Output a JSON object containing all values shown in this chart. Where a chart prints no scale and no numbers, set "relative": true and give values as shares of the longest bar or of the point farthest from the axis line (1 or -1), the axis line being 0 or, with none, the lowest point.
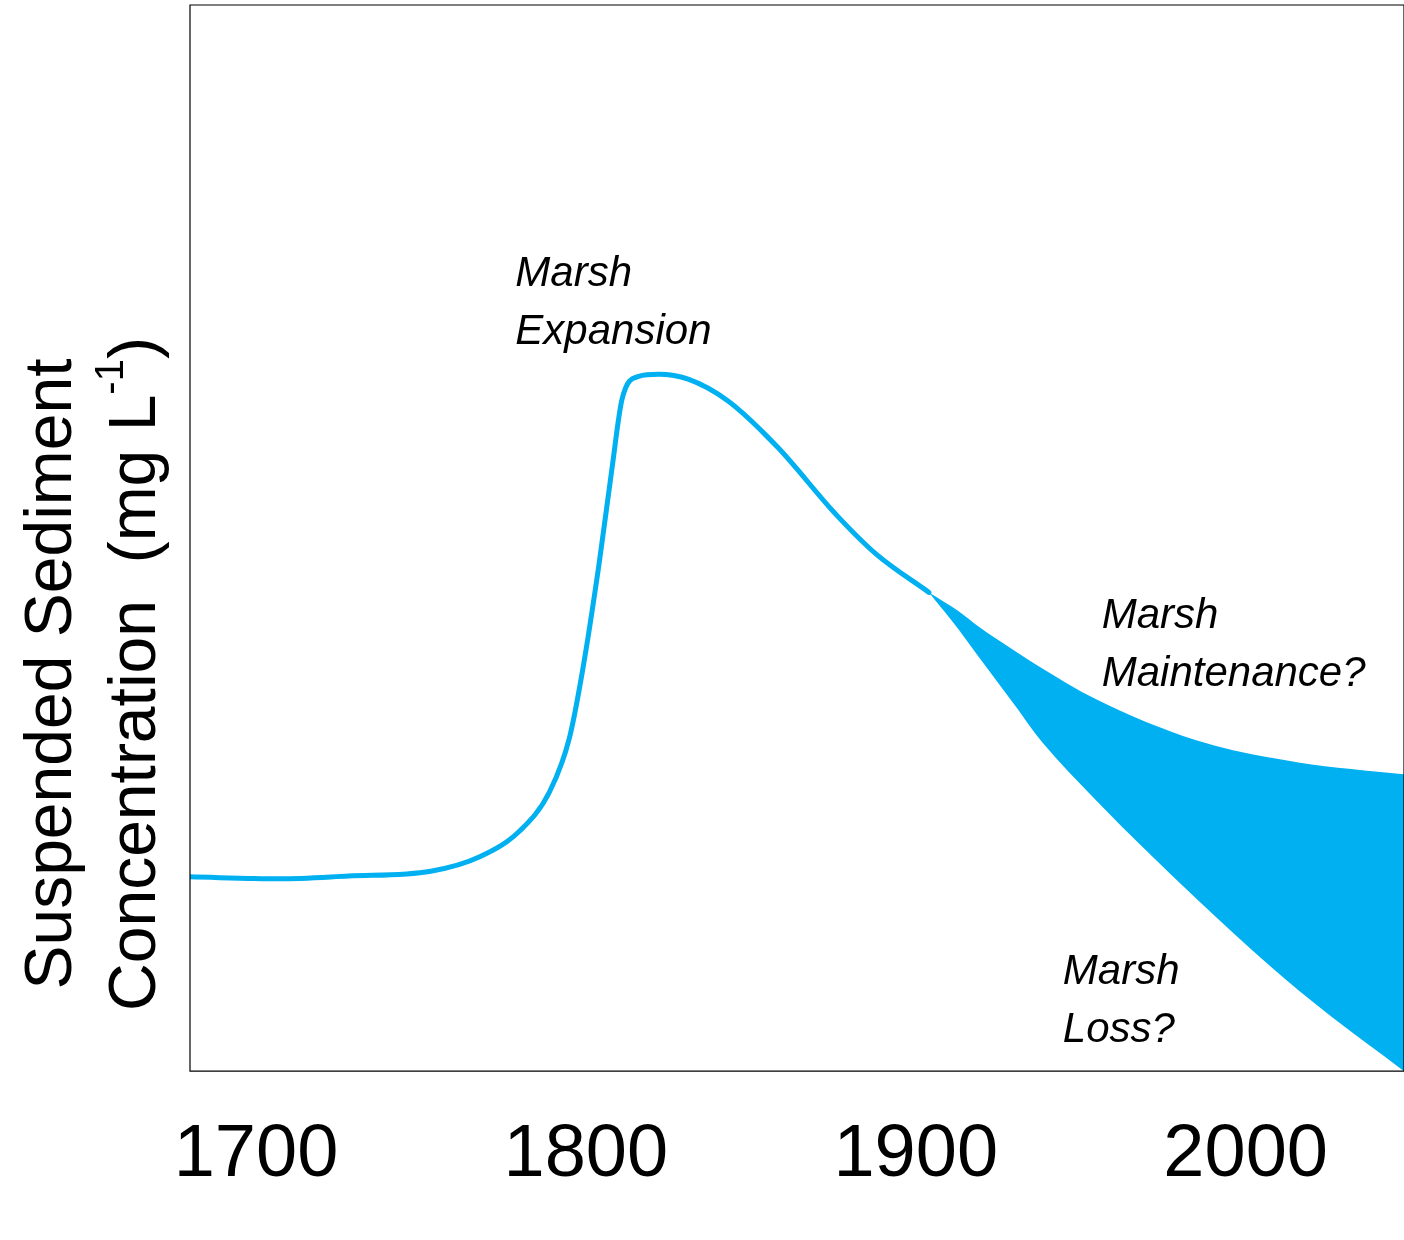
{
  "chart_data": {
    "type": "line",
    "relative": true,
    "ylabel": "Suspended Sediment\nConcentration  (mg L$^{-1}$)",
    "x": [
      1680,
      1707,
      1728,
      1753,
      1768,
      1780,
      1789,
      1795,
      1799,
      1804,
      1808,
      1811,
      1816,
      1822,
      1831,
      1843,
      1858,
      1876,
      1888,
      1904,
      1913,
      1919,
      1931,
      1937,
      1955,
      1985,
      2016,
      2048
    ],
    "xlim": [
      1680,
      2048
    ],
    "xticks": [
      1700,
      1800,
      1900,
      2000
    ],
    "tick_labels": "x",
    "grid": false,
    "legend": false,
    "marker": "none",
    "line_style": "solid",
    "series": [
      {
        "color": "#00b0f0",
        "values": [
          0.279,
          0.276,
          0.28,
          0.287,
          0.308,
          0.345,
          0.401,
          0.478,
          0.575,
          0.728,
          0.868,
          0.965,
          0.997,
          1,
          0.993,
          0.962,
          0.896,
          0.798,
          0.742,
          0.687,
          null,
          null,
          null,
          null,
          null,
          null,
          null,
          null
        ],
        "lower": [
          null,
          null,
          null,
          null,
          null,
          null,
          null,
          null,
          null,
          null,
          null,
          null,
          null,
          null,
          null,
          null,
          null,
          null,
          null,
          0.687,
          0.634,
          0.595,
          0.519,
          0.48,
          0.387,
          0.248,
          0.116,
          0
        ],
        "upper": [
          null,
          null,
          null,
          null,
          null,
          null,
          null,
          null,
          null,
          null,
          null,
          null,
          null,
          null,
          null,
          null,
          null,
          null,
          null,
          0.687,
          0.66,
          0.638,
          0.6,
          0.582,
          0.533,
          0.475,
          0.443,
          0.426
        ]
      }
    ],
    "annotations": [
      "Marsh\nExpansion",
      "Marsh\nMaintenance?",
      "Marsh\nLoss?"
    ]
  }
}
